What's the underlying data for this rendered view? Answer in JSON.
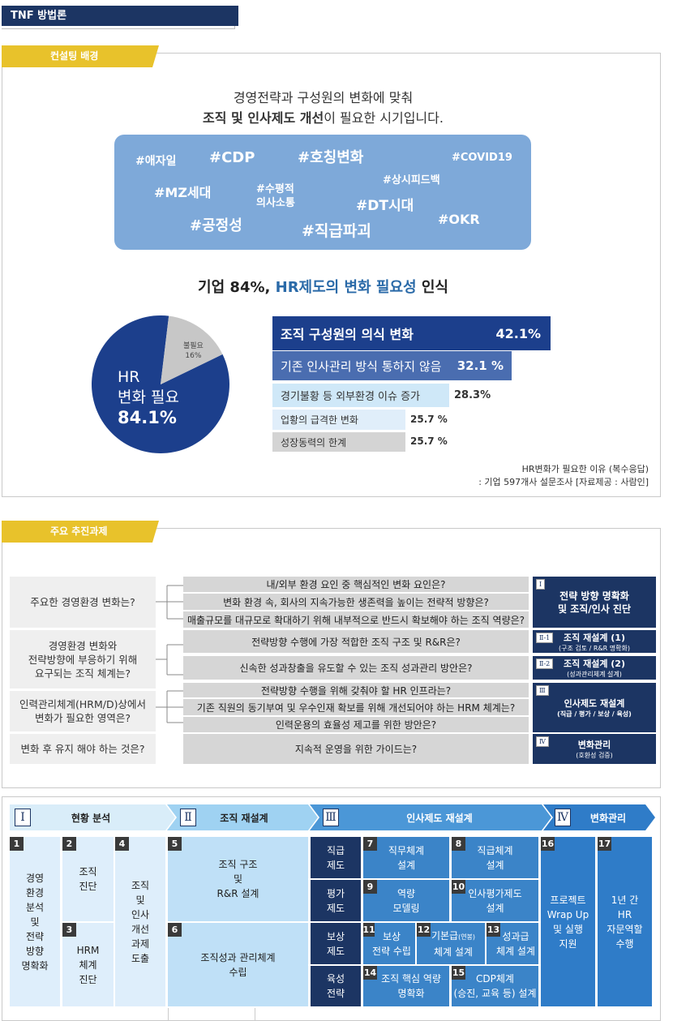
{
  "page": {
    "title": "TNF 방법론"
  },
  "background": {
    "tab": "컨설팅 배경",
    "heading_line1": "경영전략과 구성원의 변화에 맞춰",
    "heading_bold": "조직 및 인사제도 개선",
    "heading_rest": "이 필요한 시기입니다.",
    "tags": [
      "#애자일",
      "#CDP",
      "#호칭변화",
      "#COVID19",
      "#상시피드백",
      "#MZ세대",
      "#수평적",
      "의사소통",
      "#DT시대",
      "#공정성",
      "#직급파괴",
      "#OKR"
    ],
    "stat_prefix": "기업 84%, ",
    "stat_highlight": "HR제도의 변화 필요성",
    "stat_suffix": " 인식",
    "pie": {
      "main_label_1": "HR",
      "main_label_2": "변화 필요",
      "main_value": "84.1%",
      "minor_label": "불필요",
      "minor_value": "16%",
      "main_pct": 84.1
    },
    "bars": [
      {
        "label": "조직 구성원의 의식 변화",
        "value": "42.1%",
        "pct": 42.1,
        "color": "#1c3f8c"
      },
      {
        "label": "기존 인사관리 방식 통하지 않음",
        "value": "32.1 %",
        "pct": 32.1,
        "color": "#4a6db0"
      },
      {
        "label": "경기불황 등 외부환경 이슈 증가",
        "value": "28.3%",
        "pct": 28.3,
        "color": "#cfe8f8"
      },
      {
        "label": "업황의 급격한 변화",
        "value": "25.7 %",
        "pct": 25.7,
        "color": "#e0eefa"
      },
      {
        "label": "성장동력의 한계",
        "value": "25.7 %",
        "pct": 25.7,
        "color": "#d4d4d4"
      }
    ],
    "note1": "HR변화가 필요한 이유 (복수응답)",
    "note2": ": 기업 597개사 설문조사 [자료제공 : 사람인]"
  },
  "tasks": {
    "tab": "주요 추진과제",
    "left": [
      "주요한 경영환경 변화는?",
      "경영환경 변화와\n전략방향에 부응하기 위해\n요구되는 조직 체계는?",
      "인력관리체계(HRM/D)상에서\n변화가 필요한 영역은?",
      "변화 후 유지 해야 하는 것은?"
    ],
    "mid": [
      "내/외부 환경 요인 중 핵심적인 변화 요인은?",
      "변화 환경 속, 회사의 지속가능한 생존력을 높이는 전략적 방향은?",
      "매출규모를 대규모로 확대하기 위해 내부적으로 반드시 확보해야 하는 조직 역량은?",
      "전략방향 수행에 가장 적합한 조직 구조 및 R&R은?",
      "신속한 성과창출을 유도할 수 있는 조직 성과관리 방안은?",
      "전략방향 수행을 위해 갖춰야 할 HR 인프라는?",
      "기존 직원의 동기부여 및 우수인재 확보를 위해 개선되어야 하는 HRM 체계는?",
      "인력운용의 효율성 제고를 위한 방안은?",
      "지속적 운영을 위한 가이드는?"
    ],
    "right": [
      {
        "num": "Ⅰ",
        "title": "전략 방향 명확화\n및 조직/인사 진단",
        "sub": ""
      },
      {
        "num": "Ⅱ-1",
        "title": "조직 재설계 (1)",
        "sub": "(구조 검토 / R&R 명확화)"
      },
      {
        "num": "Ⅱ-2",
        "title": "조직 재설계 (2)",
        "sub": "(성과관리체계 설계)"
      },
      {
        "num": "Ⅲ",
        "title": "인사제도 재설계",
        "sub": "(직급 / 평가 / 보상 / 육성)"
      },
      {
        "num": "Ⅳ",
        "title": "변화관리",
        "sub": "(호환성 검증)"
      }
    ]
  },
  "phases": {
    "headers": [
      {
        "num": "Ⅰ",
        "label": "현황 분석"
      },
      {
        "num": "Ⅱ",
        "label": "조직 재설계"
      },
      {
        "num": "Ⅲ",
        "label": "인사제도 재설계"
      },
      {
        "num": "Ⅳ",
        "label": "변화관리"
      }
    ],
    "c1": {
      "num": "1",
      "text": "경영\n환경\n분석\n및\n전략\n방향\n명확화"
    },
    "c2": {
      "num": "2",
      "text": "조직\n진단"
    },
    "c3": {
      "num": "3",
      "text": "HRM\n체계\n진단"
    },
    "c4": {
      "num": "4",
      "text": "조직\n및\n인사\n개선\n과제\n도출"
    },
    "c5": {
      "num": "5",
      "text": "조직 구조\n및\nR&R 설계"
    },
    "c6": {
      "num": "6",
      "text": "조직성과 관리체계\n수립"
    },
    "rows": [
      "직급\n제도",
      "평가\n제도",
      "보상\n제도",
      "육성\n전략"
    ],
    "c7": {
      "num": "7",
      "text": "직무체계\n설계"
    },
    "c8": {
      "num": "8",
      "text": "직급체계\n설계"
    },
    "c9": {
      "num": "9",
      "text": "역량\n모델링"
    },
    "c10": {
      "num": "10",
      "text": "인사평가제도\n설계"
    },
    "c11": {
      "num": "11",
      "text": "보상\n전략 수립"
    },
    "c12": {
      "num": "12",
      "text_a": "기본급",
      "text_small": "(연봉)",
      "text_b": "체계 설계"
    },
    "c13": {
      "num": "13",
      "text": "성과급\n체계 설계"
    },
    "c14": {
      "num": "14",
      "text": "조직 핵심 역량\n명확화"
    },
    "c15": {
      "num": "15",
      "text": "CDP체계\n(승진, 교육 등) 설계"
    },
    "c16": {
      "num": "16",
      "text": "프로젝트\nWrap Up\n및 실행\n지원"
    },
    "c17": {
      "num": "17",
      "text": "1년 간\nHR\n자문역할\n수행"
    }
  }
}
